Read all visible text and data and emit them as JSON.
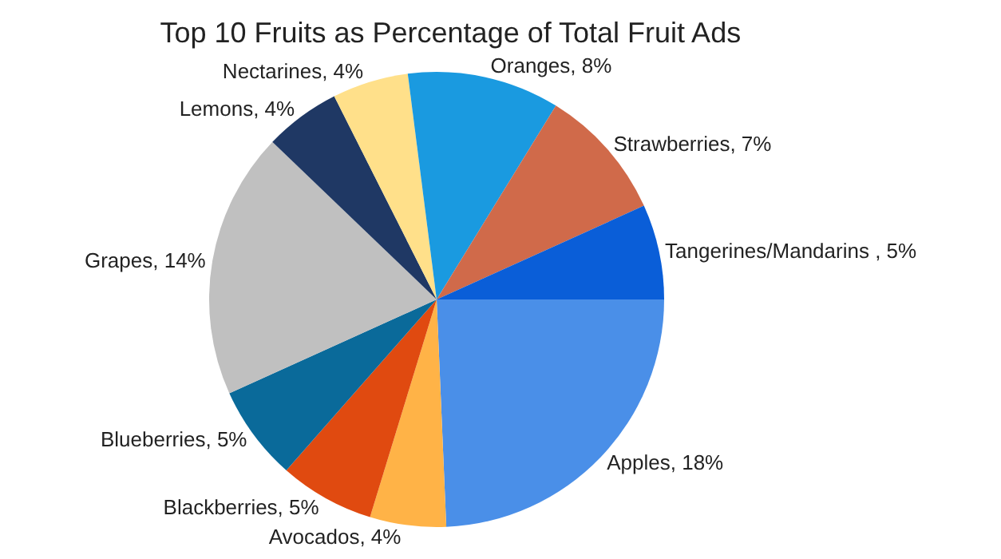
{
  "chart_data": {
    "type": "pie",
    "title": "Top 10 Fruits as Percentage of Total Fruit Ads",
    "categories": [
      "Apples",
      "Avocados",
      "Blackberries",
      "Blueberries",
      "Grapes",
      "Lemons",
      "Nectarines",
      "Oranges",
      "Strawberries",
      "Tangerines/Mandarins "
    ],
    "values": [
      18,
      4,
      5,
      5,
      14,
      4,
      4,
      8,
      7,
      5
    ],
    "value_labels": [
      "18%",
      "4%",
      "5%",
      "5%",
      "14%",
      "4%",
      "4%",
      "8%",
      "7%",
      "5%"
    ],
    "colors": [
      "#4a8fe8",
      "#ffb347",
      "#e04a10",
      "#0a6a9a",
      "#c0c0c0",
      "#1f3864",
      "#ffe08a",
      "#1a9ae0",
      "#d06a4a",
      "#0a5ed8"
    ],
    "legend": false
  }
}
